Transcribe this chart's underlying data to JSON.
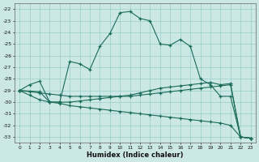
{
  "xlabel": "Humidex (Indice chaleur)",
  "bg_color": "#cce8e4",
  "grid_color": "#99cccc",
  "line_color": "#1a6b5a",
  "xlim": [
    -0.5,
    23.5
  ],
  "ylim": [
    -33.5,
    -21.5
  ],
  "xticks": [
    0,
    1,
    2,
    3,
    4,
    5,
    6,
    7,
    8,
    9,
    10,
    11,
    12,
    13,
    14,
    15,
    16,
    17,
    18,
    19,
    20,
    21,
    22,
    23
  ],
  "yticks": [
    -22,
    -23,
    -24,
    -25,
    -26,
    -27,
    -28,
    -29,
    -30,
    -31,
    -32,
    -33
  ],
  "series1_x": [
    0,
    1,
    2,
    3,
    4,
    5,
    6,
    7,
    8,
    9,
    10,
    11,
    12,
    13,
    14,
    15,
    16,
    17,
    18,
    19,
    20,
    21,
    22,
    23
  ],
  "series1_y": [
    -29.0,
    -28.5,
    -28.2,
    -30.0,
    -30.0,
    -26.5,
    -26.7,
    -27.2,
    -25.2,
    -24.1,
    -22.3,
    -22.2,
    -22.8,
    -23.0,
    -25.0,
    -25.1,
    -24.6,
    -25.2,
    -28.0,
    -28.5,
    -29.5,
    -29.5,
    -33.0,
    -33.1
  ],
  "series2_x": [
    0,
    2,
    3,
    4,
    5,
    6,
    7,
    8,
    9,
    10,
    11,
    12,
    13,
    14,
    15,
    16,
    17,
    18,
    19,
    20,
    21,
    22,
    23
  ],
  "series2_y": [
    -29.0,
    -29.1,
    -30.0,
    -30.0,
    -30.0,
    -29.9,
    -29.8,
    -29.7,
    -29.6,
    -29.5,
    -29.4,
    -29.2,
    -29.0,
    -28.8,
    -28.7,
    -28.6,
    -28.5,
    -28.4,
    -28.3,
    -28.5,
    -28.4,
    -33.0,
    -33.1
  ],
  "series3_x": [
    0,
    1,
    2,
    3,
    4,
    5,
    6,
    7,
    8,
    9,
    10,
    11,
    12,
    13,
    14,
    15,
    16,
    17,
    18,
    19,
    20,
    21,
    22,
    23
  ],
  "series3_y": [
    -29.0,
    -29.1,
    -29.2,
    -29.3,
    -29.4,
    -29.5,
    -29.5,
    -29.5,
    -29.5,
    -29.5,
    -29.5,
    -29.5,
    -29.4,
    -29.3,
    -29.2,
    -29.1,
    -29.0,
    -28.9,
    -28.8,
    -28.7,
    -28.6,
    -28.5,
    -33.0,
    -33.1
  ],
  "series4_x": [
    0,
    1,
    2,
    3,
    4,
    5,
    6,
    7,
    8,
    9,
    10,
    11,
    12,
    13,
    14,
    15,
    16,
    17,
    18,
    19,
    20,
    21,
    22,
    23
  ],
  "series4_y": [
    -29.0,
    -29.4,
    -29.8,
    -30.0,
    -30.1,
    -30.3,
    -30.4,
    -30.5,
    -30.6,
    -30.7,
    -30.8,
    -30.9,
    -31.0,
    -31.1,
    -31.2,
    -31.3,
    -31.4,
    -31.5,
    -31.6,
    -31.7,
    -31.8,
    -32.0,
    -33.0,
    -33.1
  ]
}
